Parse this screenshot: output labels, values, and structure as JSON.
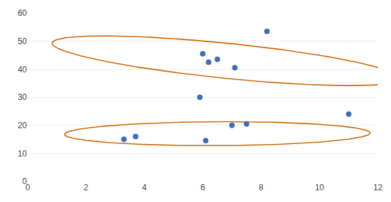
{
  "chart_data": {
    "type": "scatter",
    "x": [
      3.3,
      3.7,
      5.9,
      6.0,
      6.2,
      6.5,
      7.0,
      7.1,
      6.1,
      7.5,
      8.2,
      11.0
    ],
    "values": [
      15.0,
      16.0,
      30.0,
      45.5,
      42.5,
      43.5,
      20.0,
      40.5,
      14.5,
      20.5,
      53.5,
      24.0
    ],
    "color": "#3B6DBF",
    "ellipses": [
      {
        "center_x": 6.8,
        "center_y": 43.0,
        "width": 7.5,
        "height": 20.0,
        "angle": 30,
        "color": "#CC6600"
      },
      {
        "center_x": 6.5,
        "center_y": 17.0,
        "width": 10.5,
        "height": 8.5,
        "angle": 8,
        "color": "#CC6600"
      }
    ],
    "xlim": [
      0,
      12
    ],
    "ylim": [
      0,
      60
    ],
    "xticks": [
      0,
      2,
      4,
      6,
      8,
      10,
      12
    ],
    "yticks": [
      0,
      10,
      20,
      30,
      40,
      50,
      60
    ],
    "grid": "y"
  }
}
